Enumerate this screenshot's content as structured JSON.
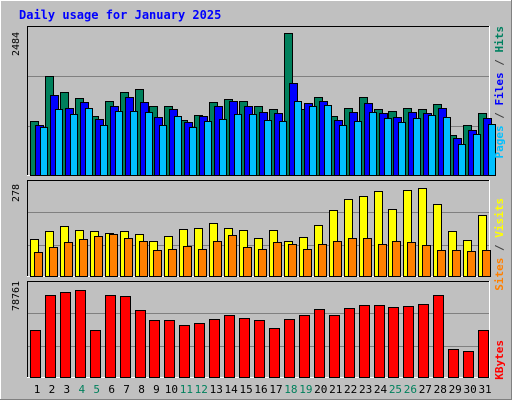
{
  "chart_data": [
    {
      "type": "bar",
      "title": "Daily usage for January 2025",
      "ymax_label": "2484",
      "ylabel_parts": [
        {
          "text": "Pages",
          "color": "#00c0ff"
        },
        {
          "text": " / ",
          "color": "#404040"
        },
        {
          "text": "Files",
          "color": "#0000ff"
        },
        {
          "text": " / ",
          "color": "#404040"
        },
        {
          "text": "Hits",
          "color": "#008060"
        }
      ],
      "ylim": [
        0,
        2484
      ],
      "categories": [
        "1",
        "2",
        "3",
        "4",
        "5",
        "6",
        "7",
        "8",
        "9",
        "10",
        "11",
        "12",
        "13",
        "14",
        "15",
        "16",
        "17",
        "18",
        "19",
        "20",
        "21",
        "22",
        "23",
        "24",
        "25",
        "26",
        "27",
        "28",
        "29",
        "30",
        "31"
      ],
      "series": [
        {
          "name": "Hits",
          "color": "#00805c",
          "values": [
            940,
            1740,
            1450,
            1340,
            1040,
            1300,
            1450,
            1500,
            1200,
            1200,
            970,
            1050,
            1270,
            1330,
            1300,
            1200,
            1150,
            2484,
            1150,
            1360,
            1040,
            1170,
            1370,
            1160,
            1120,
            1170,
            1160,
            1250,
            700,
            880,
            1080
          ]
        },
        {
          "name": "Files",
          "color": "#0000ff",
          "values": [
            880,
            1400,
            1180,
            1280,
            980,
            1200,
            1370,
            1280,
            1020,
            1150,
            930,
            1030,
            1200,
            1300,
            1200,
            1100,
            1080,
            1610,
            1260,
            1290,
            970,
            1100,
            1260,
            1080,
            1020,
            1100,
            1080,
            1180,
            640,
            790,
            1000
          ]
        },
        {
          "name": "Pages",
          "color": "#00c0ff",
          "values": [
            840,
            1150,
            1060,
            1180,
            880,
            1120,
            1120,
            1100,
            880,
            1040,
            840,
            950,
            980,
            1070,
            1070,
            960,
            940,
            1300,
            1200,
            1220,
            880,
            950,
            1100,
            990,
            920,
            1000,
            1050,
            1010,
            540,
            720,
            890
          ]
        }
      ]
    },
    {
      "type": "bar",
      "ymax_label": "278",
      "ylabel_parts": [
        {
          "text": "Sites",
          "color": "#ff8000"
        },
        {
          "text": " / ",
          "color": "#404040"
        },
        {
          "text": "Visits",
          "color": "#ffff00"
        }
      ],
      "ylim": [
        0,
        278
      ],
      "categories": [
        "1",
        "2",
        "3",
        "4",
        "5",
        "6",
        "7",
        "8",
        "9",
        "10",
        "11",
        "12",
        "13",
        "14",
        "15",
        "16",
        "17",
        "18",
        "19",
        "20",
        "21",
        "22",
        "23",
        "24",
        "25",
        "26",
        "27",
        "28",
        "29",
        "30",
        "31"
      ],
      "series": [
        {
          "name": "Visits",
          "color": "#ffff00",
          "values": [
            115,
            140,
            155,
            145,
            140,
            135,
            140,
            130,
            110,
            125,
            148,
            150,
            165,
            150,
            145,
            120,
            145,
            110,
            122,
            160,
            205,
            240,
            250,
            265,
            210,
            270,
            275,
            225,
            140,
            112,
            190
          ]
        },
        {
          "name": "Sites",
          "color": "#ff8000",
          "values": [
            75,
            90,
            105,
            115,
            125,
            130,
            120,
            110,
            80,
            85,
            95,
            85,
            110,
            128,
            90,
            85,
            105,
            100,
            85,
            100,
            110,
            118,
            118,
            100,
            108,
            106,
            98,
            82,
            80,
            78,
            82
          ]
        }
      ]
    },
    {
      "type": "bar",
      "ymax_label": "78761",
      "ylabel_parts": [
        {
          "text": "KBytes",
          "color": "#ff0000"
        }
      ],
      "ylim": [
        0,
        78761
      ],
      "categories": [
        "1",
        "2",
        "3",
        "4",
        "5",
        "6",
        "7",
        "8",
        "9",
        "10",
        "11",
        "12",
        "13",
        "14",
        "15",
        "16",
        "17",
        "18",
        "19",
        "20",
        "21",
        "22",
        "23",
        "24",
        "25",
        "26",
        "27",
        "28",
        "29",
        "30",
        "31"
      ],
      "series": [
        {
          "name": "KBytes",
          "color": "#ff0000",
          "values": [
            42000,
            73000,
            75000,
            77000,
            42000,
            73000,
            72000,
            59000,
            50000,
            50000,
            46000,
            48000,
            51000,
            55000,
            52000,
            50000,
            43000,
            51000,
            55000,
            60000,
            55000,
            61000,
            64000,
            64000,
            62000,
            63000,
            65000,
            73000,
            25000,
            23000,
            42000
          ]
        }
      ]
    }
  ],
  "day_colors": {
    "weekday": "#000000",
    "weekend": "#00805c",
    "weekend_days": [
      "4",
      "5",
      "11",
      "12",
      "18",
      "19",
      "25",
      "26"
    ]
  }
}
